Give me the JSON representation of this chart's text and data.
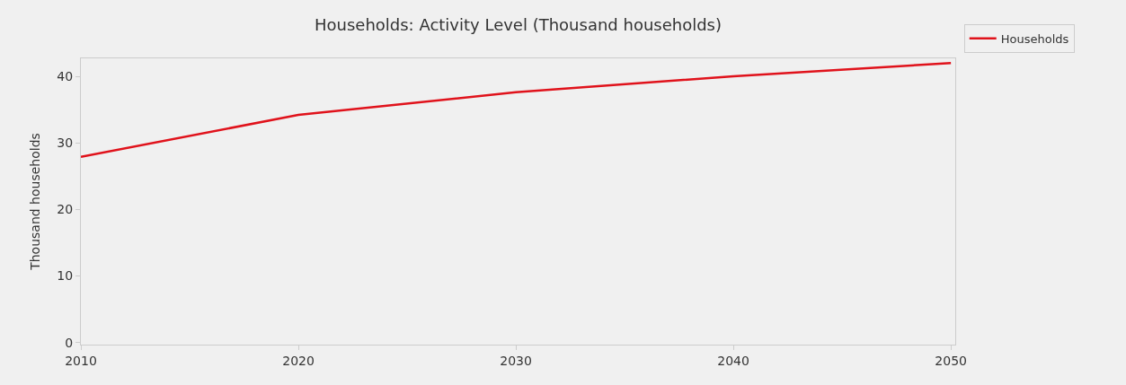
{
  "chart_data": {
    "type": "line",
    "title": "Households: Activity Level (Thousand households)",
    "ylabel": "Thousand households",
    "x": [
      2010,
      2020,
      2030,
      2040,
      2050
    ],
    "series": [
      {
        "name": "Households",
        "color": "#e0121b",
        "values": [
          27.9,
          34.2,
          37.6,
          40.0,
          42.0
        ]
      }
    ],
    "xlim": [
      2010,
      2050.2
    ],
    "xticks": [
      2010,
      2020,
      2030,
      2040,
      2050
    ],
    "ylim": [
      -0.3,
      42.7
    ],
    "yticks": [
      0,
      10,
      20,
      30,
      40
    ],
    "grid": false,
    "legend": "top right",
    "marker": "none",
    "line_style": "solid"
  }
}
